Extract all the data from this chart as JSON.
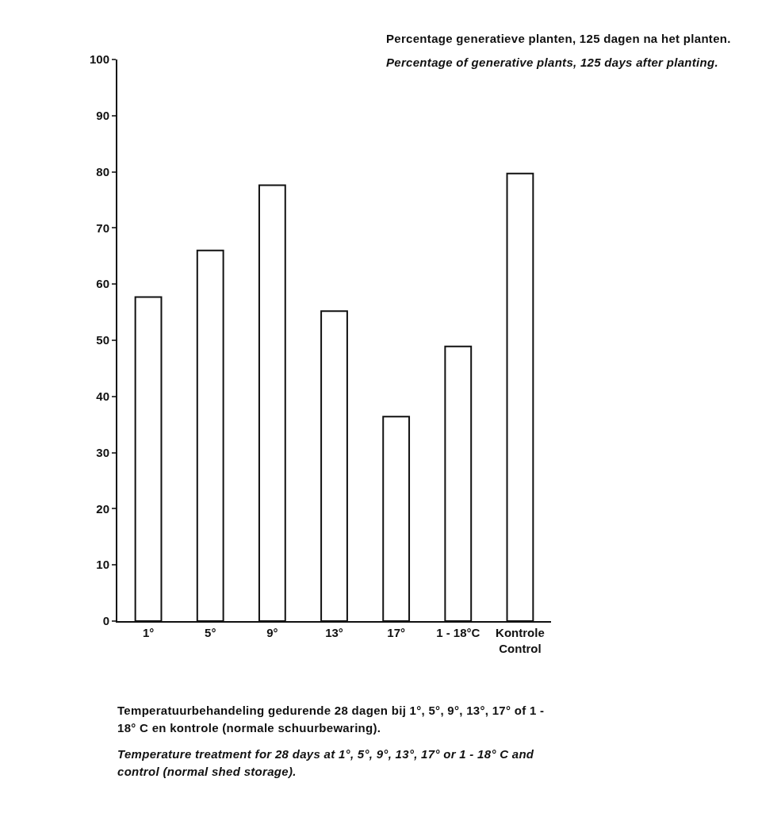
{
  "chart_data": {
    "type": "bar",
    "title": "Percentage generatieve planten, 125 dagen na het planten.",
    "subtitle": "Percentage of generative plants, 125 days after planting.",
    "xlabel": "Temperatuurbehandeling gedurende 28 dagen bij 1°, 5°, 9°, 13°, 17° of 1 - 18° C en kontrole (normale schuurbewaring).",
    "annotations": [
      "Temperature treatment for 28 days at 1°, 5°, 9°, 13°, 17° or 1 - 18° C and control (normal shed storage)."
    ],
    "categories": [
      "1°",
      "5°",
      "9°",
      "13°",
      "17°",
      "1 - 18°C",
      "Kontrole\nControl"
    ],
    "values": [
      57.7,
      66,
      77.6,
      55.2,
      36.4,
      48.9,
      79.7
    ],
    "color": "#ffffff",
    "ylim": [
      0,
      100
    ],
    "yticks": [
      0,
      10,
      20,
      30,
      40,
      50,
      60,
      70,
      80,
      90,
      100
    ],
    "grid": false,
    "legend": false
  }
}
